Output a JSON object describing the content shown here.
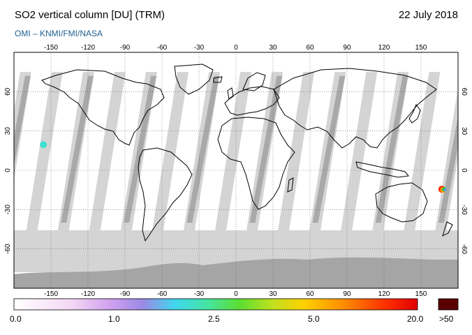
{
  "header": {
    "title": "SO2 vertical column [DU] (TRM)",
    "date": "22 July 2018",
    "credit": "OMI  –  KNMI/FMI/NASA"
  },
  "map": {
    "lon_ticks": [
      "-150",
      "-120",
      "-90",
      "-60",
      "-30",
      "0",
      "30",
      "60",
      "90",
      "120",
      "150"
    ],
    "lat_ticks": [
      "60",
      "30",
      "0",
      "-30",
      "-60"
    ],
    "projection": "equirectangular",
    "land_color": "#000000",
    "no_data_color": "#d4d4d4",
    "orbit_swath_color": "#a9a9a9",
    "antarctica_color": "#a5a5a5",
    "features": [
      {
        "name": "SO2 plume Vanuatu",
        "lon": 168,
        "lat": -15,
        "colors": [
          "#ff2a00",
          "#ffa000",
          "#2fbf2f",
          "#4aa0ff"
        ]
      },
      {
        "name": "SO2 patch Hawaii",
        "lon": -155,
        "lat": 19,
        "colors": [
          "#40e0d0"
        ]
      }
    ]
  },
  "colorbar": {
    "labels": [
      "0.0",
      "1.0",
      "2.5",
      "5.0",
      "20.0",
      ">50"
    ],
    "over_color": "#5a0000"
  }
}
